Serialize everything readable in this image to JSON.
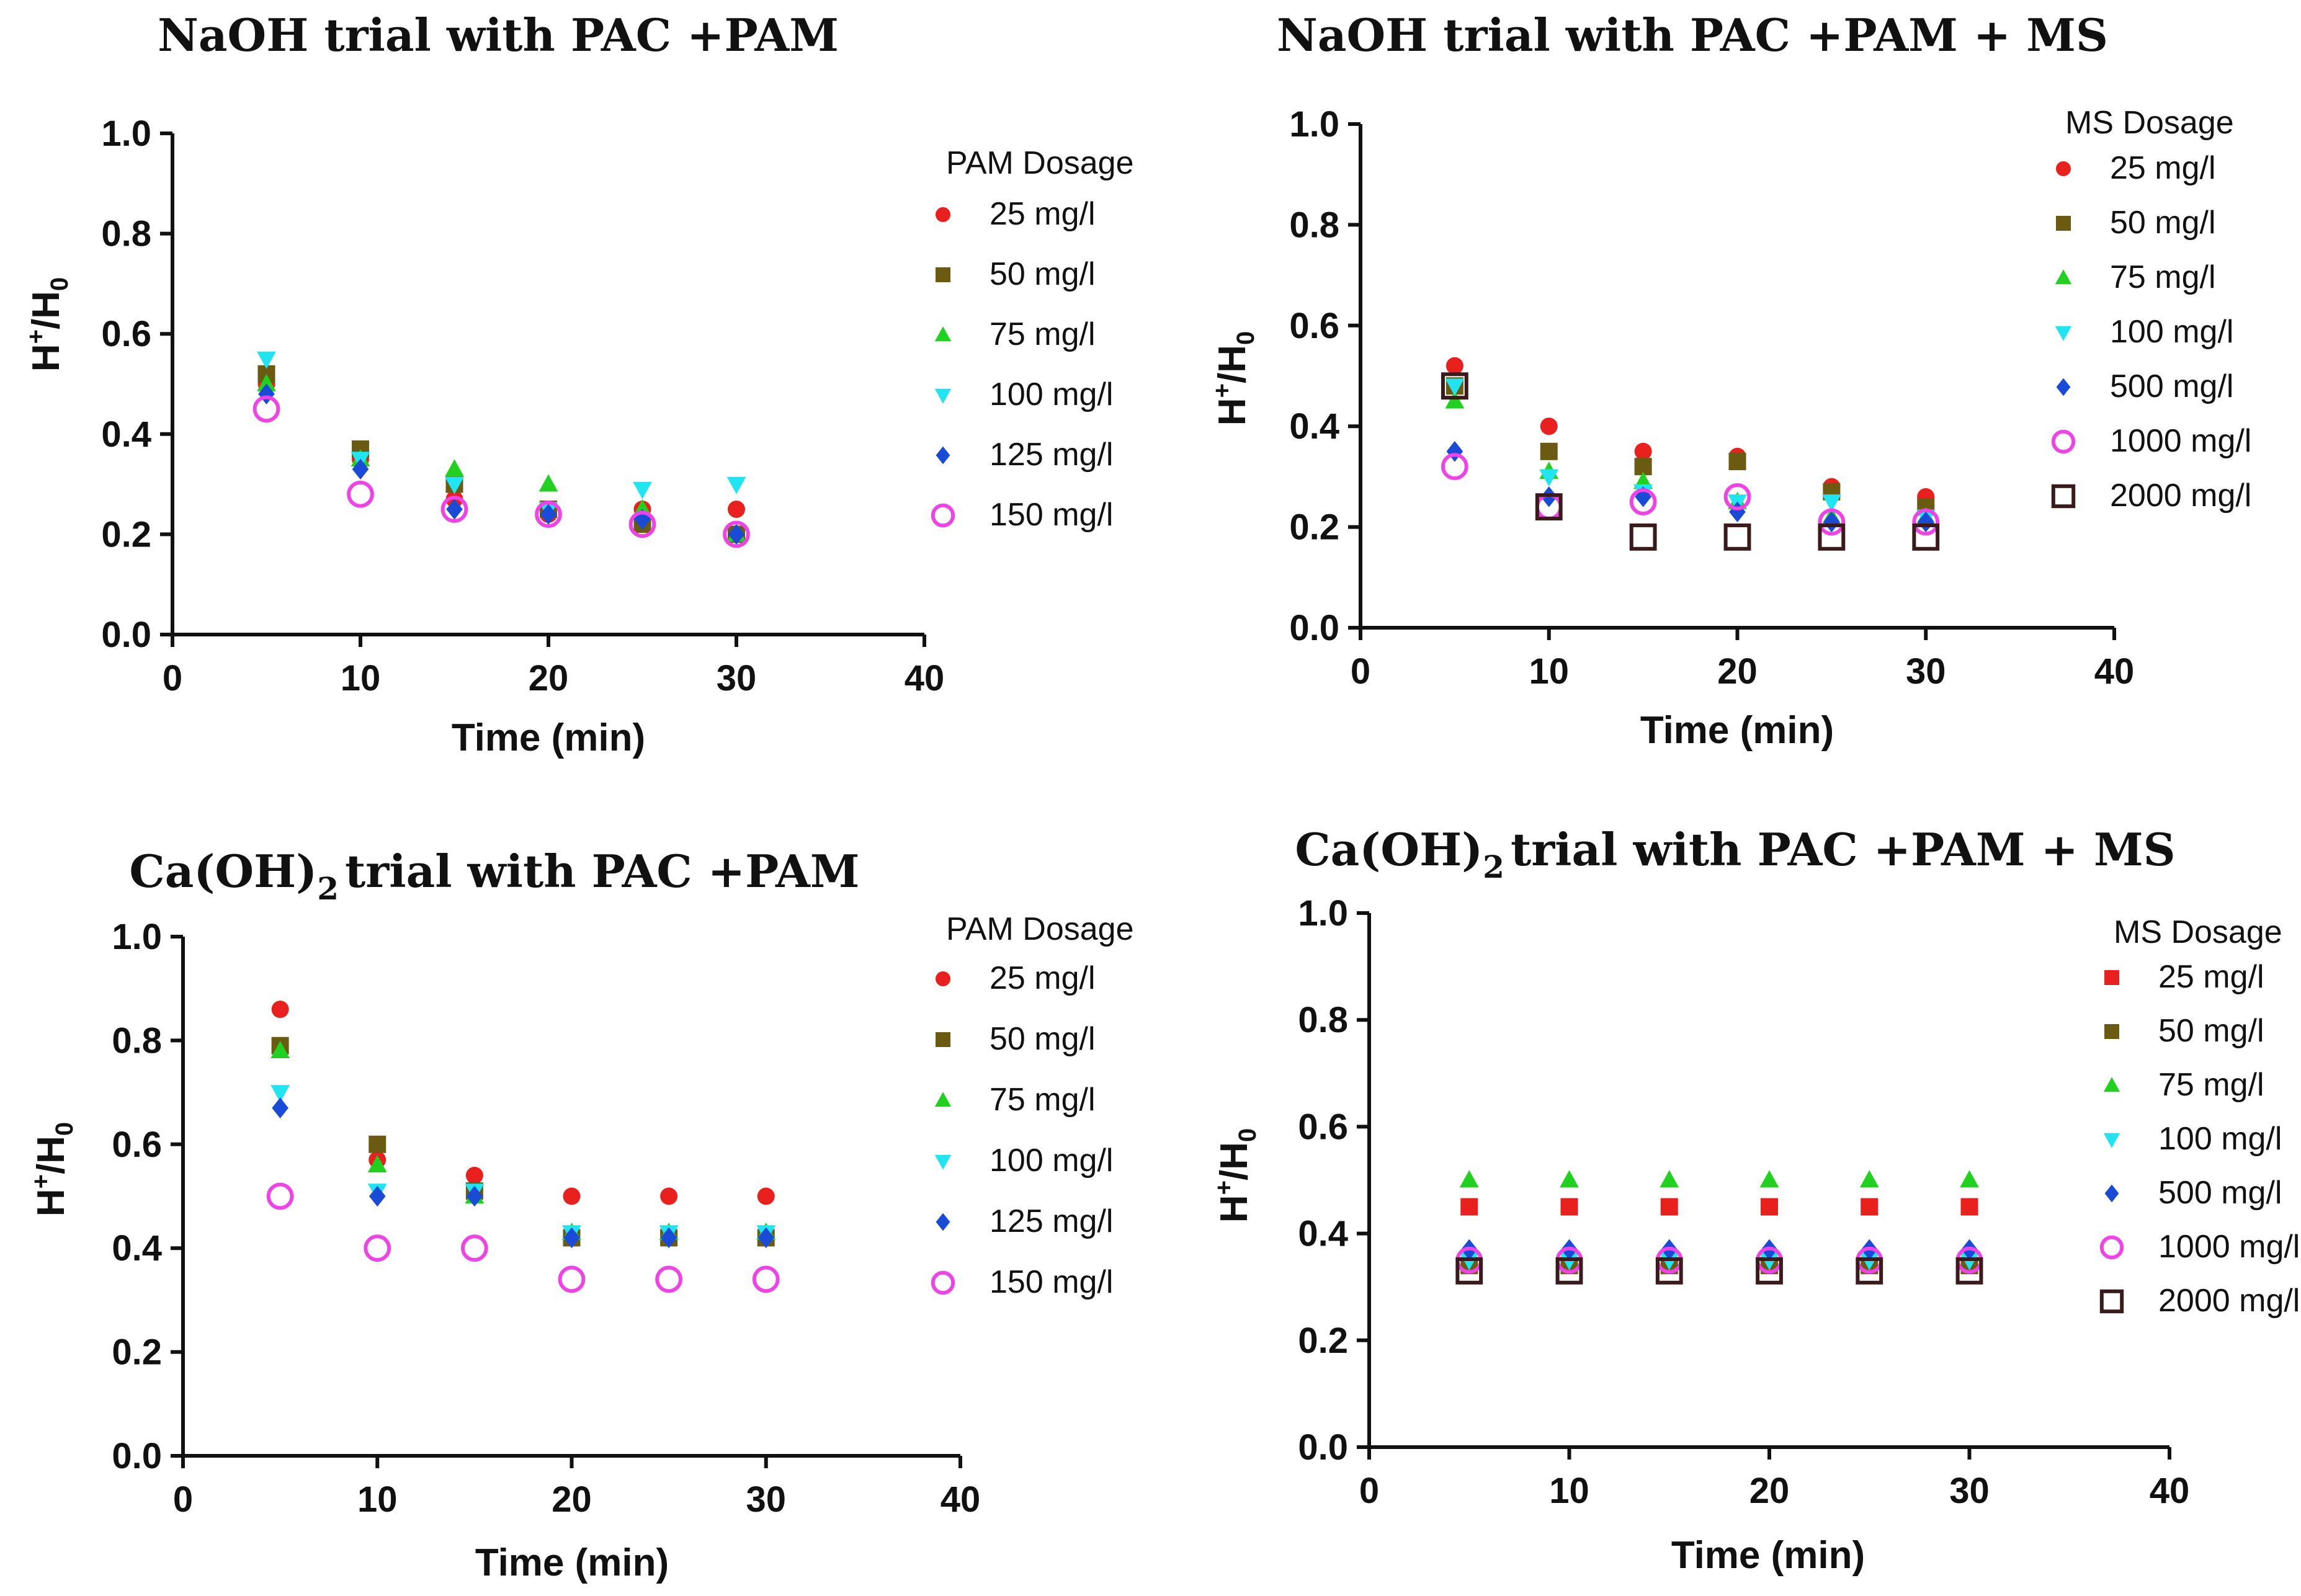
{
  "chart_data": [
    {
      "id": "p1",
      "type": "scatter",
      "title": "NaOH trial with PAC +PAM",
      "xlabel": "Time (min)",
      "ylabel_main": "H",
      "ylabel_sup": "+",
      "ylabel_mid": "/H",
      "ylabel_sub": "0",
      "xlim": [
        0,
        40
      ],
      "ylim": [
        0,
        1.0
      ],
      "xticks": [
        "0",
        "10",
        "20",
        "30",
        "40"
      ],
      "yticks": [
        "0.0",
        "0.2",
        "0.4",
        "0.6",
        "0.8",
        "1.0"
      ],
      "legend_title": "PAM Dosage",
      "legend_position": "right",
      "series": [
        {
          "name": "25 mg/l",
          "marker": "circle",
          "color": "#e8201e",
          "x": [
            5,
            10,
            15,
            20,
            25,
            30
          ],
          "y": [
            0.5,
            0.35,
            0.27,
            0.24,
            0.25,
            0.25
          ]
        },
        {
          "name": "50 mg/l",
          "marker": "square",
          "color": "#6b5a12",
          "x": [
            5,
            10,
            15,
            20,
            25,
            30
          ],
          "y": [
            0.52,
            0.37,
            0.3,
            0.25,
            0.22,
            0.2
          ]
        },
        {
          "name": "75 mg/l",
          "marker": "triangle",
          "color": "#22d11f",
          "x": [
            5,
            10,
            15,
            20,
            25,
            30
          ],
          "y": [
            0.5,
            0.35,
            0.33,
            0.3,
            0.25,
            0.2
          ]
        },
        {
          "name": "100 mg/l",
          "marker": "triangle-down",
          "color": "#20e4f0",
          "x": [
            5,
            10,
            15,
            20,
            25,
            30
          ],
          "y": [
            0.55,
            0.35,
            0.3,
            0.25,
            0.29,
            0.3
          ]
        },
        {
          "name": "125 mg/l",
          "marker": "diamond",
          "color": "#1a4bd6",
          "x": [
            5,
            10,
            15,
            20,
            25,
            30
          ],
          "y": [
            0.48,
            0.33,
            0.25,
            0.24,
            0.23,
            0.2
          ]
        },
        {
          "name": "150 mg/l",
          "marker": "open-circle",
          "color": "#ee44e6",
          "x": [
            5,
            10,
            15,
            20,
            25,
            30
          ],
          "y": [
            0.45,
            0.28,
            0.25,
            0.24,
            0.22,
            0.2
          ]
        }
      ]
    },
    {
      "id": "p2",
      "type": "scatter",
      "title": "NaOH trial with PAC +PAM + MS",
      "xlabel": "Time (min)",
      "ylabel_main": "H",
      "ylabel_sup": "+",
      "ylabel_mid": "/H",
      "ylabel_sub": "0",
      "xlim": [
        0,
        40
      ],
      "ylim": [
        0,
        1.0
      ],
      "xticks": [
        "0",
        "10",
        "20",
        "30",
        "40"
      ],
      "yticks": [
        "0.0",
        "0.2",
        "0.4",
        "0.6",
        "0.8",
        "1.0"
      ],
      "legend_title": "MS Dosage",
      "legend_position": "right",
      "series": [
        {
          "name": "25 mg/l",
          "marker": "circle",
          "color": "#e8201e",
          "x": [
            5,
            10,
            15,
            20,
            25,
            30
          ],
          "y": [
            0.52,
            0.4,
            0.35,
            0.34,
            0.28,
            0.26
          ]
        },
        {
          "name": "50 mg/l",
          "marker": "square",
          "color": "#6b5a12",
          "x": [
            5,
            10,
            15,
            20,
            25,
            30
          ],
          "y": [
            0.48,
            0.35,
            0.32,
            0.33,
            0.27,
            0.24
          ]
        },
        {
          "name": "75 mg/l",
          "marker": "triangle",
          "color": "#22d11f",
          "x": [
            5,
            10,
            15,
            20,
            25,
            30
          ],
          "y": [
            0.45,
            0.31,
            0.29,
            0.25,
            0.22,
            0.22
          ]
        },
        {
          "name": "100 mg/l",
          "marker": "triangle-down",
          "color": "#20e4f0",
          "x": [
            5,
            10,
            15,
            20,
            25,
            30
          ],
          "y": [
            0.48,
            0.3,
            0.27,
            0.25,
            0.25,
            0.22
          ]
        },
        {
          "name": "500 mg/l",
          "marker": "diamond",
          "color": "#1a4bd6",
          "x": [
            5,
            10,
            15,
            20,
            25,
            30
          ],
          "y": [
            0.35,
            0.26,
            0.26,
            0.23,
            0.21,
            0.21
          ]
        },
        {
          "name": "1000 mg/l",
          "marker": "open-circle",
          "color": "#ee44e6",
          "x": [
            5,
            10,
            15,
            20,
            25,
            30
          ],
          "y": [
            0.32,
            0.24,
            0.25,
            0.26,
            0.21,
            0.21
          ]
        },
        {
          "name": "2000 mg/l",
          "marker": "open-square",
          "color": "#3a1a1a",
          "x": [
            5,
            10,
            15,
            20,
            25,
            30
          ],
          "y": [
            0.48,
            0.24,
            0.18,
            0.18,
            0.18,
            0.18
          ]
        }
      ]
    },
    {
      "id": "p3",
      "type": "scatter",
      "title_main": "Ca(OH)",
      "title_sub": "2",
      "title_rest": "trial with PAC +PAM",
      "xlabel": "Time (min)",
      "ylabel_main": "H",
      "ylabel_sup": "+",
      "ylabel_mid": "/H",
      "ylabel_sub": "0",
      "xlim": [
        0,
        40
      ],
      "ylim": [
        0,
        1.0
      ],
      "xticks": [
        "0",
        "10",
        "20",
        "30",
        "40"
      ],
      "yticks": [
        "0.0",
        "0.2",
        "0.4",
        "0.6",
        "0.8",
        "1.0"
      ],
      "legend_title": "PAM Dosage",
      "legend_position": "right",
      "series": [
        {
          "name": "25 mg/l",
          "marker": "circle",
          "color": "#e8201e",
          "x": [
            5,
            10,
            15,
            20,
            25,
            30
          ],
          "y": [
            0.86,
            0.57,
            0.54,
            0.5,
            0.5,
            0.5
          ]
        },
        {
          "name": "50 mg/l",
          "marker": "square",
          "color": "#6b5a12",
          "x": [
            5,
            10,
            15,
            20,
            25,
            30
          ],
          "y": [
            0.79,
            0.6,
            0.51,
            0.42,
            0.42,
            0.42
          ]
        },
        {
          "name": "75 mg/l",
          "marker": "triangle",
          "color": "#22d11f",
          "x": [
            5,
            10,
            15,
            20,
            25,
            30
          ],
          "y": [
            0.78,
            0.56,
            0.5,
            0.43,
            0.43,
            0.43
          ]
        },
        {
          "name": "100 mg/l",
          "marker": "triangle-down",
          "color": "#20e4f0",
          "x": [
            5,
            10,
            15,
            20,
            25,
            30
          ],
          "y": [
            0.7,
            0.51,
            0.51,
            0.43,
            0.43,
            0.43
          ]
        },
        {
          "name": "125 mg/l",
          "marker": "diamond",
          "color": "#1a4bd6",
          "x": [
            5,
            10,
            15,
            20,
            25,
            30
          ],
          "y": [
            0.67,
            0.5,
            0.5,
            0.42,
            0.42,
            0.42
          ]
        },
        {
          "name": "150 mg/l",
          "marker": "open-circle",
          "color": "#ee44e6",
          "x": [
            5,
            10,
            15,
            20,
            25,
            30
          ],
          "y": [
            0.5,
            0.4,
            0.4,
            0.34,
            0.34,
            0.34
          ]
        }
      ]
    },
    {
      "id": "p4",
      "type": "scatter",
      "title_main": "Ca(OH)",
      "title_sub": "2",
      "title_rest": "trial with PAC +PAM + MS",
      "xlabel": "Time (min)",
      "ylabel_main": "H",
      "ylabel_sup": "+",
      "ylabel_mid": "/H",
      "ylabel_sub": "0",
      "xlim": [
        0,
        40
      ],
      "ylim": [
        0,
        1.0
      ],
      "xticks": [
        "0",
        "10",
        "20",
        "30",
        "40"
      ],
      "yticks": [
        "0.0",
        "0.2",
        "0.4",
        "0.6",
        "0.8",
        "1.0"
      ],
      "legend_title": "MS Dosage",
      "legend_position": "right",
      "series": [
        {
          "name": "25 mg/l",
          "marker": "square",
          "color": "#e8201e",
          "x": [
            5,
            10,
            15,
            20,
            25,
            30
          ],
          "y": [
            0.45,
            0.45,
            0.45,
            0.45,
            0.45,
            0.45
          ]
        },
        {
          "name": "50 mg/l",
          "marker": "square",
          "color": "#6b5a12",
          "x": [
            5,
            10,
            15,
            20,
            25,
            30
          ],
          "y": [
            0.34,
            0.34,
            0.34,
            0.34,
            0.34,
            0.34
          ]
        },
        {
          "name": "75 mg/l",
          "marker": "triangle",
          "color": "#22d11f",
          "x": [
            5,
            10,
            15,
            20,
            25,
            30
          ],
          "y": [
            0.5,
            0.5,
            0.5,
            0.5,
            0.5,
            0.5
          ]
        },
        {
          "name": "100 mg/l",
          "marker": "triangle-down",
          "color": "#20e4f0",
          "x": [
            5,
            10,
            15,
            20,
            25,
            30
          ],
          "y": [
            0.35,
            0.35,
            0.35,
            0.35,
            0.35,
            0.35
          ]
        },
        {
          "name": "500 mg/l",
          "marker": "diamond",
          "color": "#1a4bd6",
          "x": [
            5,
            10,
            15,
            20,
            25,
            30
          ],
          "y": [
            0.37,
            0.37,
            0.37,
            0.37,
            0.37,
            0.37
          ]
        },
        {
          "name": "1000 mg/l",
          "marker": "open-circle",
          "color": "#ee44e6",
          "x": [
            5,
            10,
            15,
            20,
            25,
            30
          ],
          "y": [
            0.35,
            0.35,
            0.35,
            0.35,
            0.35,
            0.35
          ]
        },
        {
          "name": "2000 mg/l",
          "marker": "open-square",
          "color": "#3a1a1a",
          "x": [
            5,
            10,
            15,
            20,
            25,
            30
          ],
          "y": [
            0.33,
            0.33,
            0.33,
            0.33,
            0.33,
            0.33
          ]
        }
      ]
    }
  ]
}
